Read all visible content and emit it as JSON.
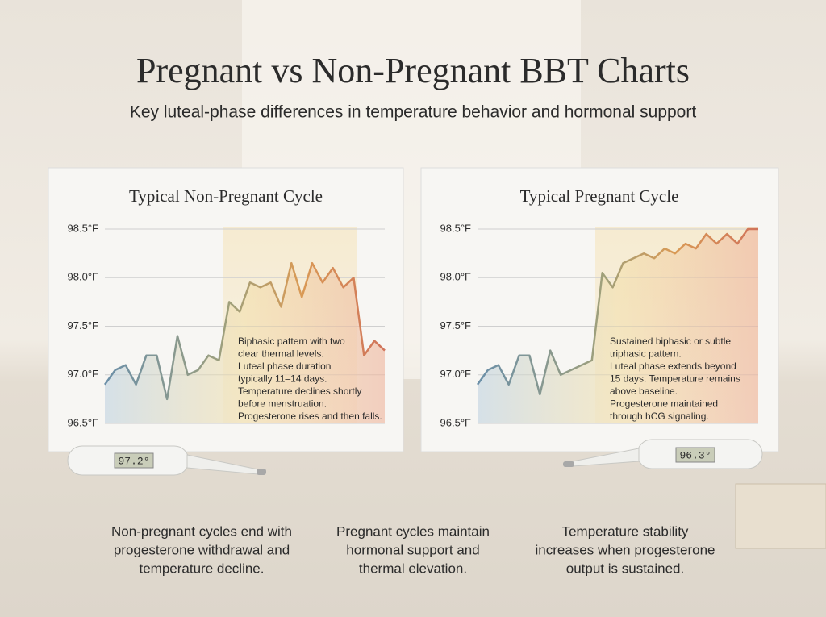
{
  "header": {
    "title": "Pregnant vs Non-Pregnant BBT Charts",
    "subtitle": "Key luteal-phase differences in temperature behavior and hormonal support"
  },
  "chart_data": [
    {
      "type": "line",
      "title": "Typical Non-Pregnant Cycle",
      "categories": [
        null,
        null,
        null,
        null,
        null,
        null,
        null,
        null,
        null,
        null,
        null,
        null,
        null,
        null,
        null,
        null,
        null,
        null,
        null,
        null,
        null,
        null,
        null,
        null,
        null,
        null,
        null,
        null
      ],
      "series": [
        {
          "values": [
            96.9,
            97.05,
            97.1,
            96.9,
            97.2,
            97.2,
            96.75,
            97.4,
            97.0,
            97.05,
            97.2,
            97.15,
            97.75,
            97.65,
            97.95,
            97.9,
            97.95,
            97.7,
            98.15,
            97.8,
            98.15,
            97.95,
            98.1,
            97.9,
            98.0,
            97.2,
            97.35,
            97.25
          ]
        }
      ],
      "ylim": [
        96.5,
        98.6
      ],
      "yticks": [
        {
          "value": 96.5,
          "label": "96.5°F"
        },
        {
          "value": 97.0,
          "label": "97.0°F"
        },
        {
          "value": 97.5,
          "label": "97.5°F"
        },
        {
          "value": 98.0,
          "label": "98.0°F"
        },
        {
          "value": 98.5,
          "label": "98.5°F"
        }
      ],
      "grid": true,
      "annotation": [
        "Biphasic pattern with two",
        "clear thermal levels.",
        "Luteal phase duration",
        "typically 11–14 days.",
        "Temperature declines shortly",
        "before menstruation.",
        "Progesterone rises and then falls."
      ]
    },
    {
      "type": "line",
      "title": "Typical Pregnant Cycle",
      "categories": [
        null,
        null,
        null,
        null,
        null,
        null,
        null,
        null,
        null,
        null,
        null,
        null,
        null,
        null,
        null,
        null,
        null,
        null,
        null,
        null,
        null,
        null,
        null,
        null,
        null,
        null,
        null,
        null
      ],
      "series": [
        {
          "values": [
            96.9,
            97.05,
            97.1,
            96.9,
            97.2,
            97.2,
            96.8,
            97.25,
            97.0,
            97.05,
            97.1,
            97.15,
            98.05,
            97.9,
            98.15,
            98.2,
            98.25,
            98.2,
            98.3,
            98.25,
            98.35,
            98.3,
            98.45,
            98.35,
            98.45,
            98.35,
            98.5,
            98.5
          ]
        }
      ],
      "ylim": [
        96.5,
        98.6
      ],
      "yticks": [
        {
          "value": 96.5,
          "label": "96.5°F"
        },
        {
          "value": 97.0,
          "label": "97.0°F"
        },
        {
          "value": 97.5,
          "label": "97.5°F"
        },
        {
          "value": 98.0,
          "label": "98.0°F"
        },
        {
          "value": 98.5,
          "label": "98.5°F"
        }
      ],
      "grid": true,
      "annotation": [
        "Sustained biphasic or subtle",
        "triphasic pattern.",
        "Luteal phase extends beyond",
        "15 days. Temperature remains",
        "above baseline.",
        "Progesterone maintained",
        "through hCG signaling."
      ]
    }
  ],
  "thermometers": [
    "97.2°",
    "96.3°"
  ],
  "captions": [
    [
      "Non-pregnant cycles end with",
      "progesterone withdrawal and",
      "temperature decline."
    ],
    [
      "Pregnant cycles maintain",
      "hormonal support and",
      "thermal elevation."
    ],
    [
      "Temperature stability",
      "increases when progesterone",
      "output is sustained."
    ]
  ]
}
